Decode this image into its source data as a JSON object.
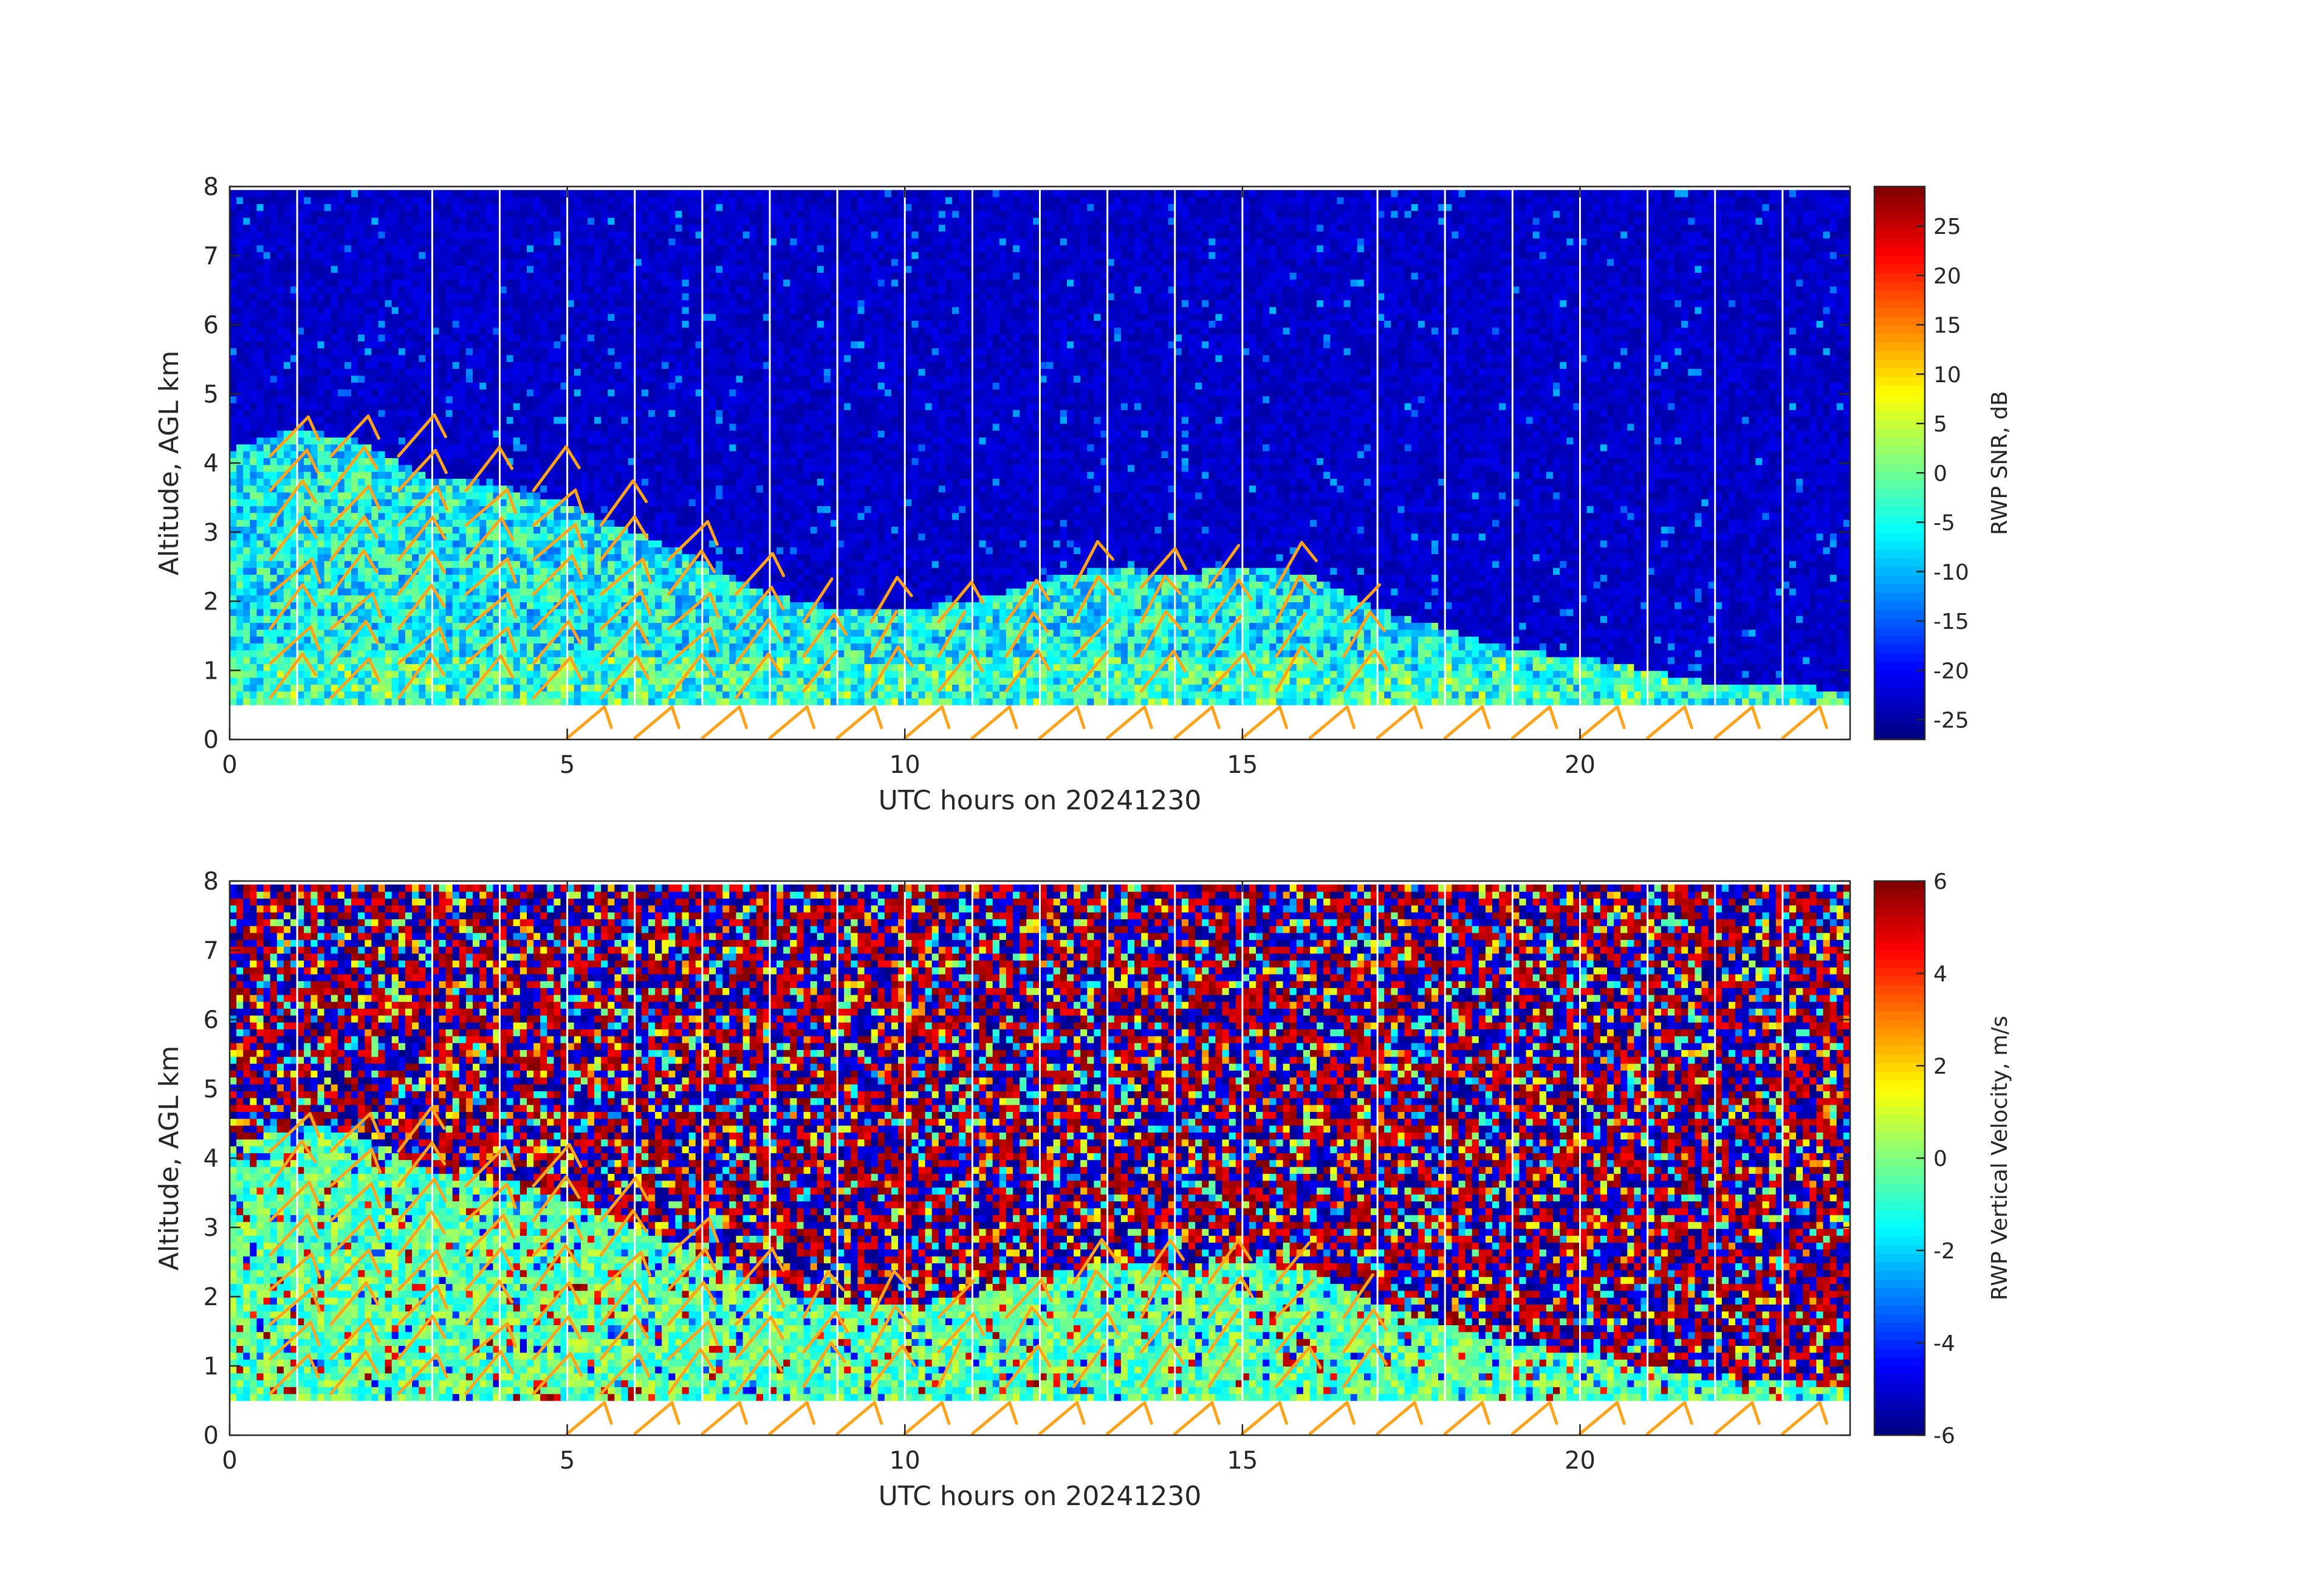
{
  "chart_data": [
    {
      "type": "heatmap",
      "panel": "top",
      "title": "",
      "xlabel": "UTC hours on 20241230",
      "ylabel": "Altitude, AGL km",
      "xlim": [
        0,
        24
      ],
      "ylim": [
        0,
        8
      ],
      "xticks": [
        0,
        5,
        10,
        15,
        20
      ],
      "yticks": [
        0,
        1,
        2,
        3,
        4,
        5,
        6,
        7,
        8
      ],
      "colorbar": {
        "label": "RWP SNR, dB",
        "range": [
          -27,
          29
        ],
        "ticks": [
          -25,
          -20,
          -15,
          -10,
          -5,
          0,
          5,
          10,
          15,
          20,
          25
        ],
        "colormap": "jet"
      },
      "field": "snr",
      "data_gap_hours": [
        1,
        3,
        4,
        5,
        6,
        7,
        8,
        9,
        10,
        11,
        12,
        13,
        14,
        15,
        17,
        18,
        19,
        20,
        21,
        22,
        23
      ],
      "min_altitude_km": 0.5,
      "boundary_layer_top_km": [
        [
          0,
          4.2
        ],
        [
          1,
          4.5
        ],
        [
          2,
          4.3
        ],
        [
          3,
          3.8
        ],
        [
          4,
          3.7
        ],
        [
          5,
          3.4
        ],
        [
          6,
          3.0
        ],
        [
          7,
          2.6
        ],
        [
          8,
          2.1
        ],
        [
          9,
          1.9
        ],
        [
          10,
          1.9
        ],
        [
          11,
          2.0
        ],
        [
          12,
          2.3
        ],
        [
          13,
          2.5
        ],
        [
          14,
          2.4
        ],
        [
          15,
          2.5
        ],
        [
          16,
          2.4
        ],
        [
          17,
          1.9
        ],
        [
          18,
          1.6
        ],
        [
          19,
          1.3
        ],
        [
          20,
          1.2
        ],
        [
          21,
          1.0
        ],
        [
          22,
          0.8
        ],
        [
          23,
          0.8
        ],
        [
          24,
          0.7
        ]
      ],
      "wind_barb_color": "#ffa31a",
      "wind_barbs_hours": [
        0.5,
        1,
        2,
        2.5,
        3,
        3.5,
        4,
        4.5,
        5,
        6,
        7,
        8,
        9,
        10,
        11,
        12,
        13,
        14,
        15,
        16,
        17,
        18,
        19,
        20,
        21,
        22,
        23
      ]
    },
    {
      "type": "heatmap",
      "panel": "bottom",
      "title": "",
      "xlabel": "UTC hours on 20241230",
      "ylabel": "Altitude, AGL km",
      "xlim": [
        0,
        24
      ],
      "ylim": [
        0,
        8
      ],
      "xticks": [
        0,
        5,
        10,
        15,
        20
      ],
      "yticks": [
        0,
        1,
        2,
        3,
        4,
        5,
        6,
        7,
        8
      ],
      "colorbar": {
        "label": "RWP Vertical Velocity, m/s",
        "range": [
          -6,
          6
        ],
        "ticks": [
          -6,
          -4,
          -2,
          0,
          2,
          4,
          6
        ],
        "colormap": "jet"
      },
      "field": "vertical_velocity",
      "data_gap_hours": [
        1,
        3,
        4,
        5,
        6,
        7,
        8,
        9,
        10,
        11,
        12,
        13,
        14,
        15,
        17,
        18,
        19,
        20,
        21,
        22,
        23
      ],
      "min_altitude_km": 0.5,
      "wind_barb_color": "#ffa31a"
    }
  ]
}
